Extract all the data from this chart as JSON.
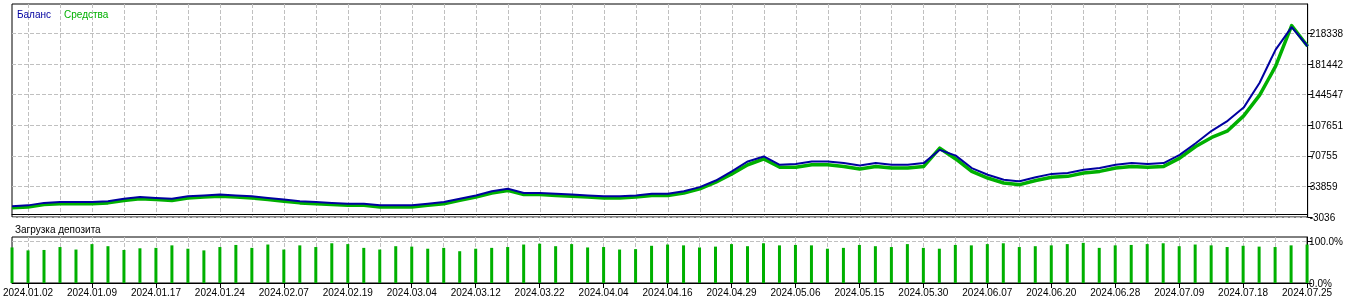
{
  "chart_data": [
    {
      "type": "line",
      "legend": "top left",
      "grid": true,
      "marker": "none",
      "line_style": "solid",
      "tick_labels": "y",
      "categories": [
        null,
        "2024.01.02",
        null,
        null,
        null,
        "2024.01.09",
        null,
        null,
        null,
        "2024.01.17",
        null,
        null,
        null,
        "2024.01.24",
        null,
        null,
        null,
        "2024.02.07",
        null,
        null,
        null,
        "2024.02.19",
        null,
        null,
        null,
        "2024.03.04",
        null,
        null,
        null,
        "2024.03.12",
        null,
        null,
        null,
        "2024.03.22",
        null,
        null,
        null,
        "2024.04.04",
        null,
        null,
        null,
        "2024.04.16",
        null,
        null,
        null,
        "2024.04.29",
        null,
        null,
        null,
        "2024.05.06",
        null,
        null,
        null,
        "2024.05.15",
        null,
        null,
        null,
        "2024.05.30",
        null,
        null,
        null,
        "2024.06.07",
        null,
        null,
        null,
        "2024.06.20",
        null,
        null,
        null,
        "2024.06.28",
        null,
        null,
        null,
        "2024.07.09",
        null,
        null,
        null,
        "2024.07.18",
        null,
        null,
        null,
        "2024.07.25"
      ],
      "ylim": [
        -3036,
        254000
      ],
      "yticks": [
        -3036,
        33859,
        70755,
        107651,
        144547,
        181442,
        218338
      ],
      "series": [
        {
          "name": "Баланс",
          "color": "#0000a0",
          "values": [
            10000,
            11000,
            14000,
            15000,
            15000,
            15000,
            16000,
            19000,
            21000,
            20000,
            19000,
            22000,
            23000,
            24000,
            23000,
            22000,
            20000,
            18000,
            16000,
            15000,
            14000,
            13000,
            13000,
            11000,
            11000,
            11000,
            13000,
            15000,
            19000,
            23000,
            28000,
            31000,
            26000,
            26000,
            25000,
            24000,
            23000,
            22000,
            22000,
            23000,
            25000,
            25000,
            28000,
            33000,
            41000,
            52000,
            64000,
            70000,
            60000,
            61000,
            64000,
            64000,
            62000,
            59000,
            62000,
            60000,
            60000,
            62000,
            78000,
            71000,
            56000,
            48000,
            42000,
            40000,
            45000,
            49000,
            50000,
            54000,
            56000,
            60000,
            62000,
            61000,
            62000,
            72000,
            86000,
            101000,
            113000,
            129000,
            159000,
            199000,
            226000,
            203000
          ]
        },
        {
          "name": "Средства",
          "color": "#00b000",
          "values": [
            8000,
            9000,
            12000,
            13000,
            13000,
            13000,
            14000,
            17000,
            19000,
            18000,
            17000,
            20000,
            21000,
            22000,
            21000,
            20000,
            18000,
            16000,
            14000,
            13000,
            12000,
            11000,
            11000,
            9000,
            9000,
            9000,
            11000,
            13000,
            17000,
            21000,
            26000,
            29000,
            24000,
            24000,
            23000,
            22000,
            21000,
            20000,
            20000,
            21000,
            23000,
            23000,
            26000,
            31000,
            39000,
            49000,
            60000,
            67000,
            57000,
            57000,
            60000,
            60000,
            58000,
            55000,
            58000,
            56000,
            56000,
            58000,
            80000,
            67000,
            52000,
            44000,
            38000,
            36000,
            41000,
            45000,
            46000,
            50000,
            52000,
            56000,
            58000,
            57000,
            58000,
            68000,
            82000,
            93000,
            101000,
            119000,
            144000,
            179000,
            228000,
            203000
          ]
        }
      ]
    },
    {
      "type": "bar",
      "title": "Загрузка депозита",
      "grid": true,
      "categories": [
        null,
        "2024.01.02",
        null,
        null,
        null,
        "2024.01.09",
        null,
        null,
        null,
        "2024.01.17",
        null,
        null,
        null,
        "2024.01.24",
        null,
        null,
        null,
        "2024.02.07",
        null,
        null,
        null,
        "2024.02.19",
        null,
        null,
        null,
        "2024.03.04",
        null,
        null,
        null,
        "2024.03.12",
        null,
        null,
        null,
        "2024.03.22",
        null,
        null,
        null,
        "2024.04.04",
        null,
        null,
        null,
        "2024.04.16",
        null,
        null,
        null,
        "2024.04.29",
        null,
        null,
        null,
        "2024.05.06",
        null,
        null,
        null,
        "2024.05.15",
        null,
        null,
        null,
        "2024.05.30",
        null,
        null,
        null,
        "2024.06.07",
        null,
        null,
        null,
        "2024.06.20",
        null,
        null,
        null,
        "2024.06.28",
        null,
        null,
        null,
        "2024.07.09",
        null,
        null,
        null,
        "2024.07.18",
        null,
        null,
        null,
        "2024.07.25"
      ],
      "ylim": [
        0,
        110
      ],
      "yticks": [
        {
          "value": 0,
          "label": "0.0%"
        },
        {
          "value": 100,
          "label": "100.0%"
        }
      ],
      "series": [
        {
          "color": "#00b000",
          "values": [
            85,
            78,
            79,
            86,
            80,
            93,
            88,
            79,
            83,
            84,
            90,
            82,
            78,
            86,
            91,
            84,
            92,
            80,
            90,
            86,
            95,
            93,
            84,
            80,
            88,
            87,
            82,
            84,
            76,
            82,
            84,
            86,
            92,
            94,
            88,
            93,
            85,
            86,
            80,
            81,
            89,
            92,
            90,
            85,
            87,
            93,
            88,
            95,
            90,
            91,
            90,
            82,
            84,
            91,
            88,
            86,
            93,
            84,
            82,
            91,
            90,
            93,
            95,
            86,
            88,
            90,
            93,
            96,
            84,
            90,
            91,
            93,
            95,
            88,
            92,
            90,
            86,
            89,
            87,
            86,
            90,
            92
          ]
        }
      ]
    }
  ]
}
